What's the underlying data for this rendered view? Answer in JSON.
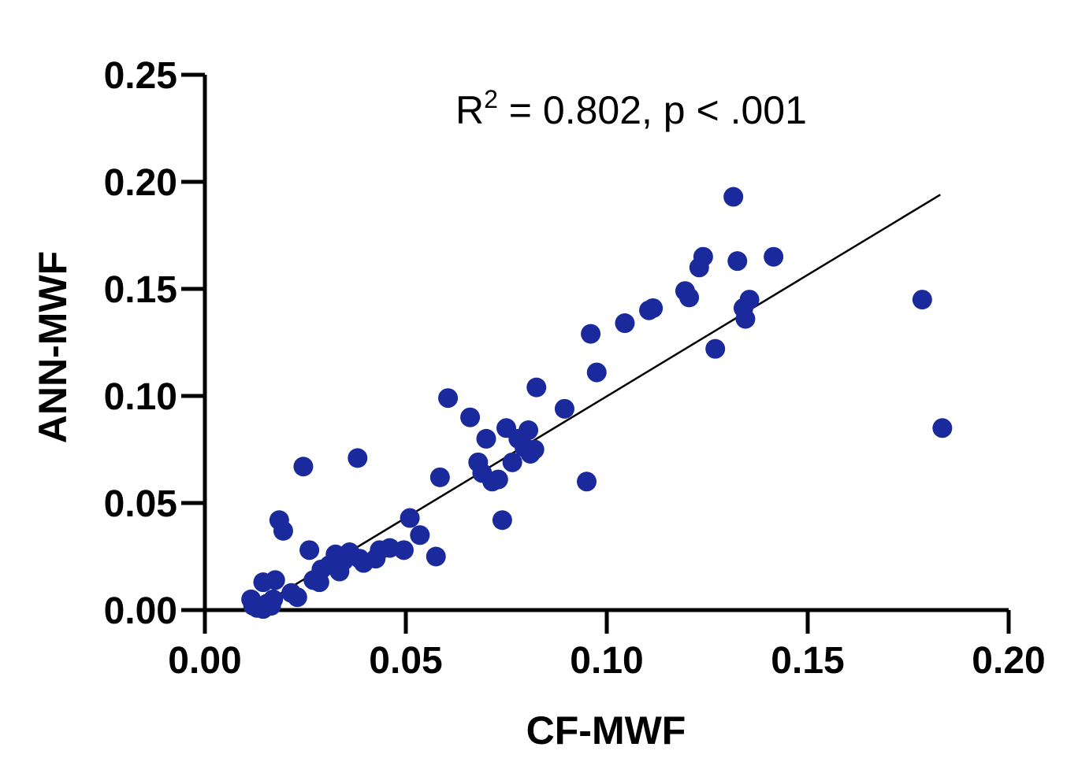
{
  "chart_data": {
    "type": "scatter",
    "xlabel": "CF-MWF",
    "ylabel": "ANN-MWF",
    "xlim": [
      0,
      0.2
    ],
    "ylim": [
      0,
      0.25
    ],
    "xticks": [
      "0.00",
      "0.05",
      "0.10",
      "0.15",
      "0.20"
    ],
    "yticks": [
      "0.00",
      "0.05",
      "0.10",
      "0.15",
      "0.20",
      "0.25"
    ],
    "xtick_values": [
      0,
      0.05,
      0.1,
      0.15,
      0.2
    ],
    "ytick_values": [
      0,
      0.05,
      0.1,
      0.15,
      0.2,
      0.25
    ],
    "annotation": {
      "r_label": "R",
      "r_superscript": "2",
      "text": " = 0.802, p < .001"
    },
    "point_color": "#1a2a9c",
    "regression_line": {
      "x_start": 0.012,
      "y_start": 0.0,
      "x_end": 0.183,
      "y_end": 0.194
    },
    "points": [
      {
        "x": 0.0115,
        "y": 0.005
      },
      {
        "x": 0.012,
        "y": 0.002
      },
      {
        "x": 0.013,
        "y": 0.001
      },
      {
        "x": 0.0145,
        "y": 0.0005
      },
      {
        "x": 0.0155,
        "y": 0.003
      },
      {
        "x": 0.0165,
        "y": 0.002
      },
      {
        "x": 0.017,
        "y": 0.005
      },
      {
        "x": 0.0145,
        "y": 0.013
      },
      {
        "x": 0.0175,
        "y": 0.014
      },
      {
        "x": 0.0185,
        "y": 0.042
      },
      {
        "x": 0.0195,
        "y": 0.037
      },
      {
        "x": 0.0215,
        "y": 0.008
      },
      {
        "x": 0.023,
        "y": 0.006
      },
      {
        "x": 0.0245,
        "y": 0.067
      },
      {
        "x": 0.026,
        "y": 0.028
      },
      {
        "x": 0.027,
        "y": 0.014
      },
      {
        "x": 0.0285,
        "y": 0.013
      },
      {
        "x": 0.029,
        "y": 0.019
      },
      {
        "x": 0.031,
        "y": 0.021
      },
      {
        "x": 0.0325,
        "y": 0.026
      },
      {
        "x": 0.0335,
        "y": 0.018
      },
      {
        "x": 0.0345,
        "y": 0.023
      },
      {
        "x": 0.036,
        "y": 0.027
      },
      {
        "x": 0.038,
        "y": 0.071
      },
      {
        "x": 0.0385,
        "y": 0.024
      },
      {
        "x": 0.0395,
        "y": 0.022
      },
      {
        "x": 0.0425,
        "y": 0.024
      },
      {
        "x": 0.0435,
        "y": 0.028
      },
      {
        "x": 0.046,
        "y": 0.029
      },
      {
        "x": 0.0495,
        "y": 0.028
      },
      {
        "x": 0.051,
        "y": 0.043
      },
      {
        "x": 0.0535,
        "y": 0.035
      },
      {
        "x": 0.0575,
        "y": 0.025
      },
      {
        "x": 0.0585,
        "y": 0.062
      },
      {
        "x": 0.0605,
        "y": 0.099
      },
      {
        "x": 0.066,
        "y": 0.09
      },
      {
        "x": 0.068,
        "y": 0.069
      },
      {
        "x": 0.069,
        "y": 0.064
      },
      {
        "x": 0.07,
        "y": 0.08
      },
      {
        "x": 0.0715,
        "y": 0.06
      },
      {
        "x": 0.073,
        "y": 0.061
      },
      {
        "x": 0.074,
        "y": 0.042
      },
      {
        "x": 0.075,
        "y": 0.085
      },
      {
        "x": 0.0765,
        "y": 0.069
      },
      {
        "x": 0.078,
        "y": 0.08
      },
      {
        "x": 0.0795,
        "y": 0.076
      },
      {
        "x": 0.0805,
        "y": 0.084
      },
      {
        "x": 0.081,
        "y": 0.073
      },
      {
        "x": 0.082,
        "y": 0.075
      },
      {
        "x": 0.0825,
        "y": 0.104
      },
      {
        "x": 0.0895,
        "y": 0.094
      },
      {
        "x": 0.095,
        "y": 0.06
      },
      {
        "x": 0.096,
        "y": 0.129
      },
      {
        "x": 0.0975,
        "y": 0.111
      },
      {
        "x": 0.1045,
        "y": 0.134
      },
      {
        "x": 0.1105,
        "y": 0.14
      },
      {
        "x": 0.1115,
        "y": 0.141
      },
      {
        "x": 0.1195,
        "y": 0.149
      },
      {
        "x": 0.1205,
        "y": 0.146
      },
      {
        "x": 0.123,
        "y": 0.16
      },
      {
        "x": 0.124,
        "y": 0.165
      },
      {
        "x": 0.127,
        "y": 0.122
      },
      {
        "x": 0.1315,
        "y": 0.193
      },
      {
        "x": 0.1325,
        "y": 0.163
      },
      {
        "x": 0.134,
        "y": 0.141
      },
      {
        "x": 0.1345,
        "y": 0.136
      },
      {
        "x": 0.1355,
        "y": 0.145
      },
      {
        "x": 0.1415,
        "y": 0.165
      },
      {
        "x": 0.1785,
        "y": 0.145
      },
      {
        "x": 0.1835,
        "y": 0.085
      }
    ]
  }
}
